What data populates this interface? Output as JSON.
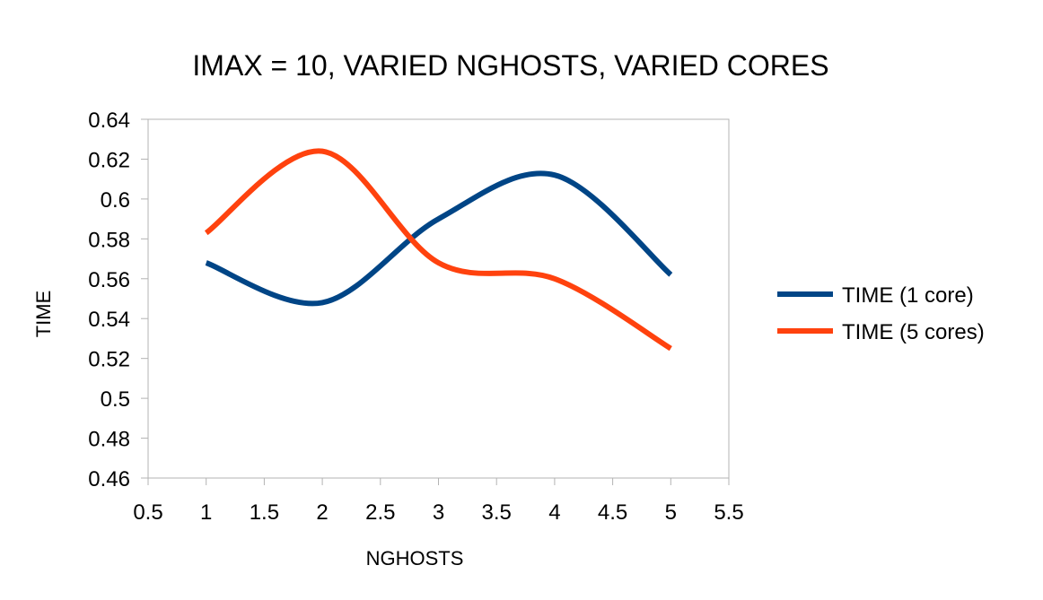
{
  "chart_data": {
    "type": "line",
    "smooth": true,
    "title": "IMAX = 10, VARIED NGHOSTS, VARIED CORES",
    "xlabel": "NGHOSTS",
    "ylabel": "TIME",
    "xlim": [
      0.5,
      5.5
    ],
    "ylim": [
      0.46,
      0.64
    ],
    "x_ticks": [
      "0.5",
      "1",
      "1.5",
      "2",
      "2.5",
      "3",
      "3.5",
      "4",
      "4.5",
      "5",
      "5.5"
    ],
    "y_ticks": [
      "0.46",
      "0.48",
      "0.5",
      "0.52",
      "0.54",
      "0.56",
      "0.58",
      "0.6",
      "0.62",
      "0.64"
    ],
    "grid": false,
    "legend_position": "right",
    "x": [
      1,
      2,
      3,
      4,
      5
    ],
    "series": [
      {
        "name": "TIME (1 core)",
        "values": [
          0.568,
          0.548,
          0.59,
          0.612,
          0.562
        ],
        "color": "#004586"
      },
      {
        "name": "TIME (5 cores)",
        "values": [
          0.583,
          0.624,
          0.568,
          0.56,
          0.525
        ],
        "color": "#ff420e"
      }
    ]
  }
}
